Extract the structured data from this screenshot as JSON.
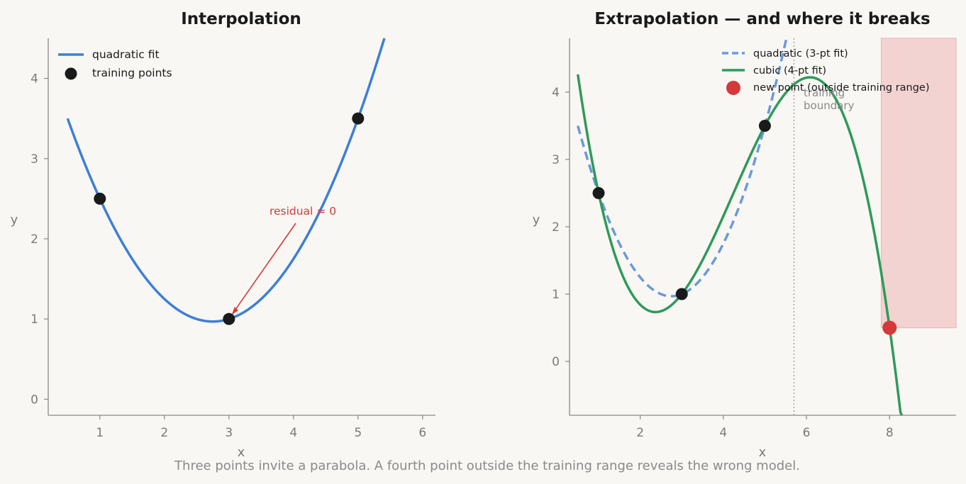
{
  "caption": "Three points invite a parabola. A fourth point outside the training range reveals the wrong model.",
  "colors": {
    "quadratic": "#3d7fd6",
    "quadratic_dashed": "#6a9ad8",
    "cubic": "#2e9a5a",
    "points": "#1a1a1a",
    "new_point": "#d43a3a",
    "shade": "#f2d3d1",
    "axis": "#888888"
  },
  "chart_data": [
    {
      "type": "line",
      "title": "Interpolation",
      "xlabel": "x",
      "ylabel": "y",
      "xlim": [
        0.2,
        6.2
      ],
      "ylim": [
        -0.2,
        4.5
      ],
      "xticks": [
        "1",
        "2",
        "3",
        "4",
        "5",
        "6"
      ],
      "yticks": [
        "0",
        "1",
        "2",
        "3",
        "4"
      ],
      "legend_position": "top-left",
      "legend": [
        "quadratic fit",
        "training points"
      ],
      "series": [
        {
          "name": "quadratic fit",
          "x": [
            0.5,
            1,
            2,
            2.75,
            3,
            4,
            5,
            5.4
          ],
          "y": [
            3.51,
            2.5,
            1.19,
            0.97,
            1.0,
            1.75,
            3.5,
            4.5
          ]
        },
        {
          "name": "training points",
          "x": [
            1,
            3,
            5
          ],
          "y": [
            2.5,
            1.0,
            3.5
          ]
        }
      ],
      "annotation": {
        "text": "residual ≈ 0",
        "x": 3.0,
        "y": 1.0
      }
    },
    {
      "type": "line",
      "title": "Extrapolation — and where it breaks",
      "xlabel": "x",
      "ylabel": "y",
      "xlim": [
        0.3,
        9.6
      ],
      "ylim": [
        -0.8,
        4.8
      ],
      "xticks": [
        "2",
        "4",
        "6",
        "8"
      ],
      "yticks": [
        "0",
        "1",
        "2",
        "3",
        "4"
      ],
      "legend_position": "top-right",
      "legend": [
        "quadratic (3-pt fit)",
        "cubic (4-pt fit)",
        "new point (outside training range)"
      ],
      "series": [
        {
          "name": "quadratic (3-pt fit)",
          "x": [
            0.5,
            1,
            2,
            2.75,
            3,
            4,
            5,
            5.5
          ],
          "y": [
            3.51,
            2.5,
            1.19,
            0.97,
            1.0,
            1.75,
            3.5,
            4.8
          ]
        },
        {
          "name": "cubic (4-pt fit)",
          "x": [
            0.5,
            1,
            2.4,
            3,
            5,
            6.1,
            7,
            8,
            8.3
          ],
          "y": [
            4.3,
            2.5,
            0.73,
            1.0,
            3.5,
            4.22,
            3.5,
            0.5,
            -0.8
          ]
        },
        {
          "name": "training points",
          "x": [
            1,
            3,
            5
          ],
          "y": [
            2.5,
            1.0,
            3.5
          ]
        },
        {
          "name": "new point (outside training range)",
          "x": [
            8
          ],
          "y": [
            0.5
          ]
        }
      ],
      "training_boundary_x": 5.7,
      "boundary_label": [
        "training",
        "boundary"
      ],
      "shaded_region": {
        "x": [
          7.8,
          9.6
        ],
        "y": [
          0.5,
          4.8
        ]
      }
    }
  ]
}
